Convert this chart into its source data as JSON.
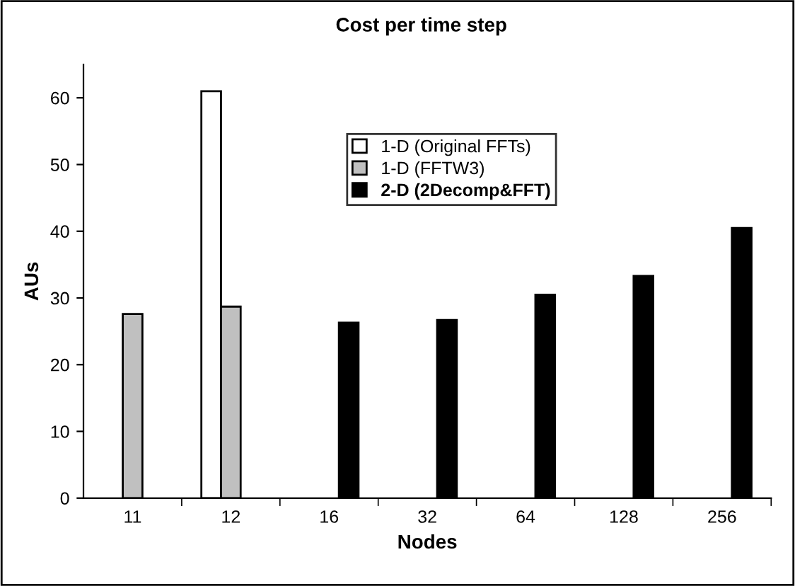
{
  "chart_data": {
    "type": "bar",
    "title": "Cost per time step",
    "xlabel": "Nodes",
    "ylabel": "AUs",
    "categories": [
      "11",
      "12",
      "16",
      "32",
      "64",
      "128",
      "256"
    ],
    "series": [
      {
        "name": "1-D (Original FFTs)",
        "color": "#ffffff",
        "values": [
          null,
          61,
          null,
          null,
          null,
          null,
          null
        ]
      },
      {
        "name": "1-D (FFTW3)",
        "color": "#c0c0c0",
        "values": [
          27.6,
          28.7,
          null,
          null,
          null,
          null,
          null
        ]
      },
      {
        "name": "2-D (2Decomp&FFT)",
        "color": "#000000",
        "values": [
          null,
          null,
          26.3,
          26.7,
          30.5,
          33.3,
          40.5
        ]
      }
    ],
    "ylim": [
      0,
      65
    ],
    "yticks": [
      0,
      10,
      20,
      30,
      40,
      50,
      60
    ],
    "grid": false,
    "legend": "top right"
  }
}
